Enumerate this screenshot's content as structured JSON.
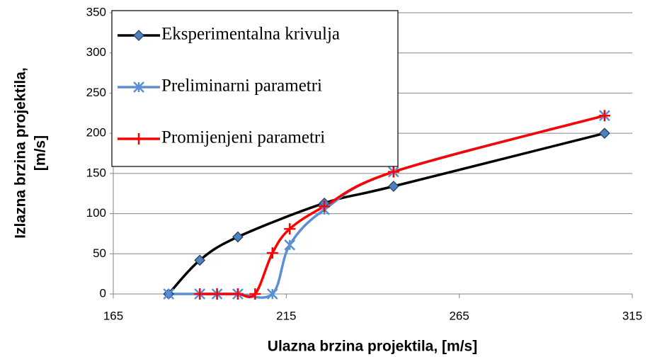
{
  "chart_data": {
    "type": "scatter_smooth",
    "xlabel": "Ulazna brzina projektila, [m/s]",
    "ylabel": [
      "Izlazna brzina projektila,",
      "[m/s]"
    ],
    "xlim": [
      165,
      315
    ],
    "xticks": [
      165,
      215,
      265,
      315
    ],
    "ylim": [
      0,
      350
    ],
    "yticks": [
      0,
      50,
      100,
      150,
      200,
      250,
      300,
      350
    ],
    "grid": true,
    "legend": "upper left",
    "series": [
      {
        "name": "Eksperimentalna krivulja",
        "color": "#000000",
        "marker": "diamond",
        "x": [
          181,
          190,
          201,
          226,
          246,
          307
        ],
        "values": [
          0,
          42,
          71,
          113,
          134,
          200
        ]
      },
      {
        "name": "Preliminarni parametri",
        "color": "#5b8fd4",
        "marker": "asterisk",
        "x": [
          181,
          190,
          195,
          201,
          211,
          216,
          226,
          246,
          307
        ],
        "values": [
          0,
          0,
          0,
          0,
          0,
          61,
          105,
          152,
          222
        ]
      },
      {
        "name": "Promijenjeni parametri",
        "color": "#ff0000",
        "marker": "plus",
        "x": [
          190,
          195,
          201,
          206,
          211,
          216,
          226,
          246,
          307
        ],
        "values": [
          0,
          0,
          0,
          0,
          51,
          81,
          109,
          152,
          222
        ]
      }
    ]
  }
}
